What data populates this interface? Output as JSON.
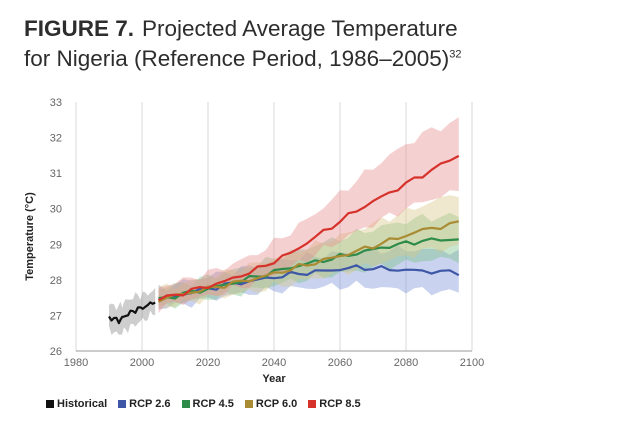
{
  "figure": {
    "label": "FIGURE 7.",
    "title_line1": "Projected Average Temperature",
    "title_line2": "for Nigeria (Reference Period, 1986–2005)",
    "footnote": "32"
  },
  "chart_data": {
    "type": "line",
    "xlabel": "Year",
    "ylabel": "Temperature (°C)",
    "xlim": [
      1980,
      2100
    ],
    "ylim": [
      26,
      33
    ],
    "xticks": [
      1980,
      2000,
      2020,
      2040,
      2060,
      2080,
      2100
    ],
    "yticks": [
      26,
      27,
      28,
      29,
      30,
      31,
      32,
      33
    ],
    "grid": "vertical",
    "legend_position": "bottom",
    "series": [
      {
        "name": "Historical",
        "color": "#111111",
        "band_color": "#8a8a8a",
        "x": [
          1990,
          1993,
          1995,
          1998,
          2001,
          2004
        ],
        "y": [
          26.95,
          26.85,
          27.0,
          27.15,
          27.25,
          27.4
        ],
        "lower": [
          26.6,
          26.45,
          26.6,
          26.75,
          26.9,
          27.1
        ],
        "upper": [
          27.3,
          27.25,
          27.4,
          27.55,
          27.6,
          27.7
        ]
      },
      {
        "name": "RCP 2.6",
        "color": "#3d56a6",
        "band_color": "#7f93d6",
        "x": [
          2005,
          2015,
          2025,
          2035,
          2045,
          2055,
          2065,
          2075,
          2085,
          2096
        ],
        "y": [
          27.45,
          27.65,
          27.85,
          28.0,
          28.15,
          28.25,
          28.35,
          28.3,
          28.25,
          28.2
        ],
        "lower": [
          27.2,
          27.35,
          27.55,
          27.65,
          27.75,
          27.8,
          27.85,
          27.75,
          27.7,
          27.65
        ],
        "upper": [
          27.75,
          28.0,
          28.2,
          28.4,
          28.6,
          28.7,
          28.8,
          28.85,
          28.85,
          28.8
        ]
      },
      {
        "name": "RCP 4.5",
        "color": "#2e8b4a",
        "band_color": "#7cc08a",
        "x": [
          2005,
          2015,
          2025,
          2035,
          2045,
          2055,
          2065,
          2075,
          2085,
          2096
        ],
        "y": [
          27.45,
          27.65,
          27.85,
          28.1,
          28.35,
          28.55,
          28.75,
          28.95,
          29.1,
          29.15
        ],
        "lower": [
          27.2,
          27.4,
          27.55,
          27.75,
          27.95,
          28.1,
          28.25,
          28.4,
          28.55,
          28.6
        ],
        "upper": [
          27.75,
          27.95,
          28.2,
          28.45,
          28.75,
          29.05,
          29.3,
          29.55,
          29.75,
          29.8
        ]
      },
      {
        "name": "RCP 6.0",
        "color": "#a88b33",
        "band_color": "#d9c98a",
        "x": [
          2005,
          2015,
          2025,
          2035,
          2045,
          2055,
          2065,
          2075,
          2085,
          2096
        ],
        "y": [
          27.45,
          27.65,
          27.85,
          28.05,
          28.3,
          28.55,
          28.8,
          29.1,
          29.4,
          29.6
        ],
        "lower": [
          27.2,
          27.4,
          27.55,
          27.7,
          27.9,
          28.1,
          28.3,
          28.55,
          28.8,
          28.95
        ],
        "upper": [
          27.75,
          27.95,
          28.2,
          28.45,
          28.75,
          29.05,
          29.4,
          29.75,
          30.1,
          30.45
        ]
      },
      {
        "name": "RCP 8.5",
        "color": "#d6312b",
        "band_color": "#e89090",
        "x": [
          2005,
          2015,
          2025,
          2035,
          2045,
          2055,
          2065,
          2075,
          2085,
          2096
        ],
        "y": [
          27.45,
          27.7,
          27.95,
          28.3,
          28.75,
          29.35,
          29.95,
          30.45,
          30.95,
          31.5
        ],
        "lower": [
          27.2,
          27.45,
          27.65,
          27.95,
          28.35,
          28.85,
          29.35,
          29.8,
          30.2,
          30.5
        ],
        "upper": [
          27.8,
          28.05,
          28.35,
          28.75,
          29.35,
          30.05,
          30.8,
          31.5,
          32.1,
          32.5
        ]
      }
    ]
  }
}
